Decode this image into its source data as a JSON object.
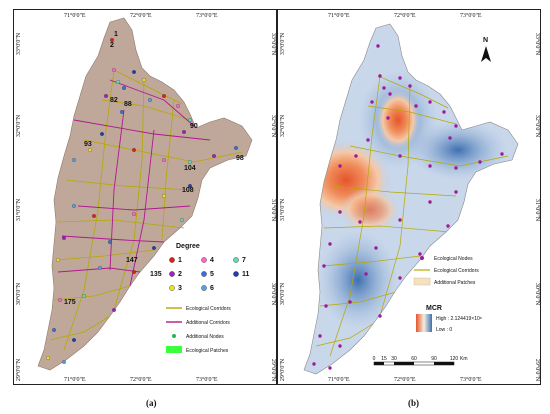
{
  "panel_a": {
    "caption": "(a)",
    "x_ticks": [
      "71°0'0\"E",
      "72°0'0\"E",
      "73°0'0\"E"
    ],
    "y_ticks": [
      "33°0'0\"N",
      "32°0'0\"N",
      "31°0'0\"N",
      "30°0'0\"N",
      "29°0'0\"N"
    ],
    "legend": {
      "title": "Degree",
      "items": [
        {
          "label": "1",
          "color": "#e0201a"
        },
        {
          "label": "4",
          "color": "#ff66cc"
        },
        {
          "label": "7",
          "color": "#66d9b0"
        },
        {
          "label": "2",
          "color": "#a020c0"
        },
        {
          "label": "5",
          "color": "#3a6fd8"
        },
        {
          "label": "11",
          "color": "#1e3fa8"
        },
        {
          "label": "3",
          "color": "#f0e020"
        },
        {
          "label": "6",
          "color": "#5aa0e0"
        }
      ],
      "entries": [
        {
          "label": "Ecological Corridors",
          "kind": "line",
          "color": "#b5a800"
        },
        {
          "label": "Additional Corridors",
          "kind": "line",
          "color": "#b0178f"
        },
        {
          "label": "Additional Nodes",
          "kind": "dot",
          "color": "#2ab34a"
        },
        {
          "label": "Ecological Patches",
          "kind": "patch",
          "color": "#3cff3c"
        }
      ]
    },
    "node_labels": [
      "1",
      "2",
      "82",
      "88",
      "90",
      "93",
      "98",
      "104",
      "108",
      "135",
      "147",
      "175"
    ]
  },
  "panel_b": {
    "caption": "(b)",
    "x_ticks": [
      "71°0'0\"E",
      "72°0'0\"E",
      "73°0'0\"E"
    ],
    "y_ticks": [
      "33°0'0\"N",
      "32°0'0\"N",
      "31°0'0\"N",
      "30°0'0\"N",
      "29°0'0\"N"
    ],
    "north": "N",
    "legend": {
      "entries": [
        {
          "label": "Ecological Nodes",
          "kind": "dot",
          "color": "#a01a9a"
        },
        {
          "label": "Ecological Corridors",
          "kind": "line",
          "color": "#b5a800"
        },
        {
          "label": "Additional Patches",
          "kind": "patch",
          "color": "#f3e2c0"
        }
      ],
      "mcr_title": "MCR",
      "mcr_high": "High : 2.124419×10⁸",
      "mcr_low": "Low : 0"
    },
    "scale": {
      "ticks": [
        "0",
        "15",
        "30",
        "60",
        "90",
        "120"
      ],
      "unit": "Km"
    }
  }
}
